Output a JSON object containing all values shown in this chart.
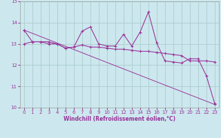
{
  "title": "",
  "xlabel": "Windchill (Refroidissement éolien,°C)",
  "bg_color": "#cce8ee",
  "line_color": "#993399",
  "grid_color": "#aacccc",
  "xlim": [
    -0.5,
    23.5
  ],
  "ylim": [
    10,
    15
  ],
  "xticks": [
    0,
    1,
    2,
    3,
    4,
    5,
    6,
    7,
    8,
    9,
    10,
    11,
    12,
    13,
    14,
    15,
    16,
    17,
    18,
    19,
    20,
    21,
    22,
    23
  ],
  "yticks": [
    10,
    11,
    12,
    13,
    14,
    15
  ],
  "series1_x": [
    0,
    1,
    2,
    3,
    4,
    5,
    6,
    7,
    8,
    9,
    10,
    11,
    12,
    13,
    14,
    15,
    16,
    17,
    18,
    19,
    20,
    21,
    22,
    23
  ],
  "series1_y": [
    13.65,
    13.1,
    13.1,
    13.1,
    13.0,
    12.8,
    12.85,
    13.6,
    13.8,
    13.0,
    12.9,
    12.9,
    13.45,
    12.9,
    13.55,
    14.5,
    13.05,
    12.2,
    12.15,
    12.1,
    12.3,
    12.3,
    11.5,
    10.2
  ],
  "series2_x": [
    0,
    1,
    2,
    3,
    4,
    5,
    6,
    7,
    8,
    9,
    10,
    11,
    12,
    13,
    14,
    15,
    16,
    17,
    18,
    19,
    20,
    21,
    22,
    23
  ],
  "series2_y": [
    13.0,
    13.1,
    13.1,
    13.0,
    13.0,
    12.8,
    12.85,
    12.95,
    12.85,
    12.85,
    12.8,
    12.75,
    12.75,
    12.7,
    12.65,
    12.65,
    12.6,
    12.55,
    12.5,
    12.45,
    12.2,
    12.2,
    12.2,
    12.15
  ],
  "series3_x": [
    0,
    23
  ],
  "series3_y": [
    13.65,
    10.15
  ]
}
